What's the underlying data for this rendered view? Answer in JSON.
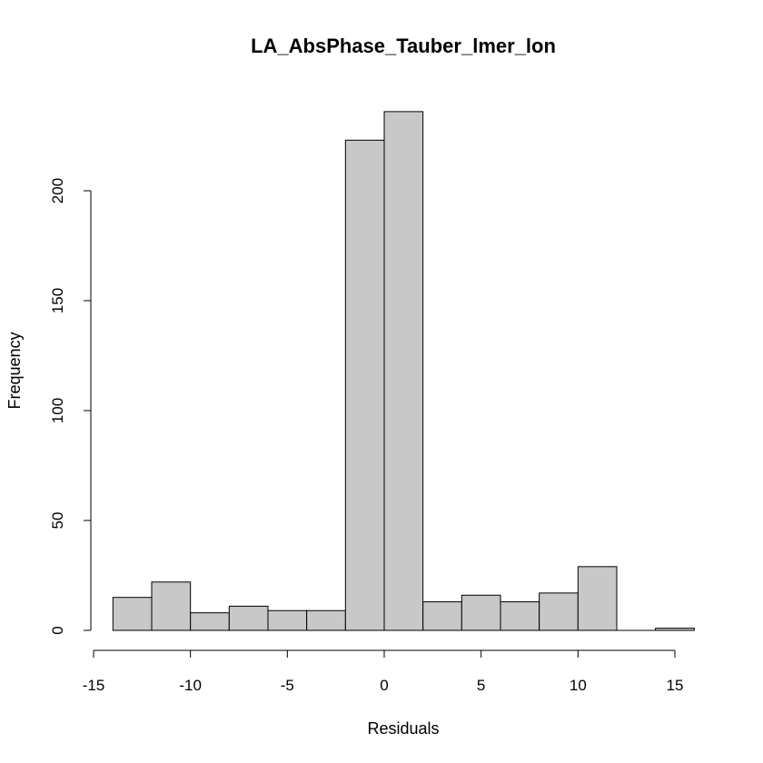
{
  "chart_data": {
    "type": "bar",
    "title": "LA_AbsPhase_Tauber_lmer_lon",
    "xlabel": "Residuals",
    "ylabel": "Frequency",
    "bar_color": "#c8c8c8",
    "bin_edges": [
      -14,
      -12,
      -10,
      -8,
      -6,
      -4,
      -2,
      0,
      2,
      4,
      6,
      8,
      10,
      12,
      14,
      16
    ],
    "values": [
      15,
      22,
      8,
      11,
      9,
      9,
      223,
      236,
      13,
      16,
      13,
      17,
      29,
      0,
      1
    ],
    "xlim": [
      -15,
      16
    ],
    "ylim": [
      0,
      236
    ],
    "x_ticks": [
      -15,
      -10,
      -5,
      0,
      5,
      10,
      15
    ],
    "y_ticks": [
      0,
      50,
      100,
      150,
      200
    ],
    "grid": false,
    "legend": "none"
  }
}
